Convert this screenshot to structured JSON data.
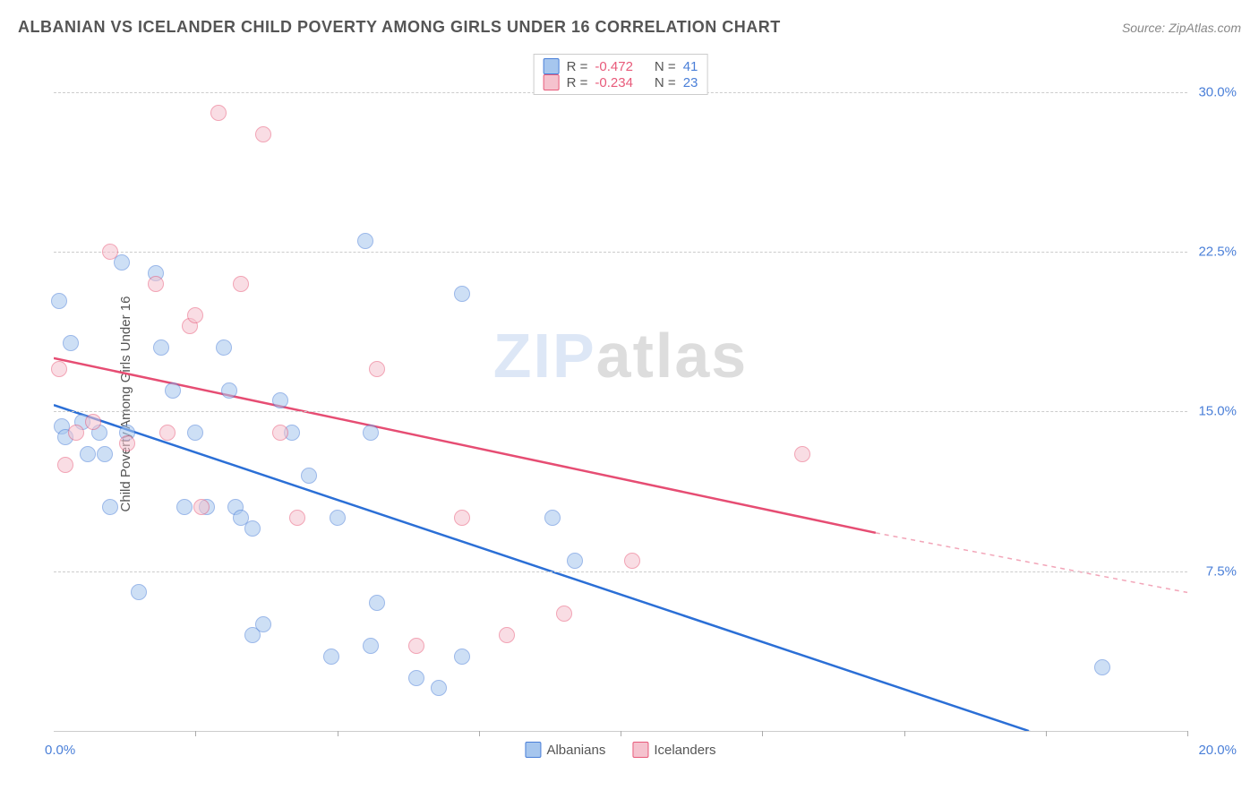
{
  "header": {
    "title": "ALBANIAN VS ICELANDER CHILD POVERTY AMONG GIRLS UNDER 16 CORRELATION CHART",
    "source_label": "Source: ",
    "source_name": "ZipAtlas.com"
  },
  "watermark": {
    "part1": "ZIP",
    "part2": "atlas"
  },
  "chart": {
    "type": "scatter",
    "y_axis_label": "Child Poverty Among Girls Under 16",
    "xlim": [
      0,
      20
    ],
    "ylim": [
      0,
      32
    ],
    "x_tick_positions": [
      0,
      2.5,
      5,
      7.5,
      10,
      12.5,
      15,
      17.5,
      20
    ],
    "y_gridlines": [
      7.5,
      15,
      22.5,
      30
    ],
    "y_tick_labels": [
      "7.5%",
      "15.0%",
      "22.5%",
      "30.0%"
    ],
    "x_origin_label": "0.0%",
    "x_end_label": "20.0%",
    "grid_color": "#cccccc",
    "background_color": "#ffffff",
    "dot_radius": 9,
    "dot_opacity": 0.55,
    "dot_border_width": 1.5
  },
  "series": [
    {
      "name": "Albanians",
      "color_fill": "#a6c6ee",
      "color_stroke": "#4a7fd8",
      "line_color": "#2b6fd6",
      "R": "-0.472",
      "N": "41",
      "trend": {
        "x1": 0,
        "y1": 15.3,
        "x2": 17.2,
        "y2": 0,
        "dashed_to_x": 20,
        "dashed_to_y": -2.5
      },
      "points": [
        [
          0.1,
          20.2
        ],
        [
          0.15,
          14.3
        ],
        [
          0.2,
          13.8
        ],
        [
          0.3,
          18.2
        ],
        [
          0.5,
          14.5
        ],
        [
          0.6,
          13.0
        ],
        [
          0.8,
          14.0
        ],
        [
          0.9,
          13.0
        ],
        [
          1.0,
          10.5
        ],
        [
          1.2,
          22.0
        ],
        [
          1.3,
          14.0
        ],
        [
          1.5,
          6.5
        ],
        [
          1.8,
          21.5
        ],
        [
          1.9,
          18.0
        ],
        [
          2.1,
          16.0
        ],
        [
          2.3,
          10.5
        ],
        [
          2.5,
          14.0
        ],
        [
          2.7,
          10.5
        ],
        [
          3.0,
          18.0
        ],
        [
          3.1,
          16.0
        ],
        [
          3.2,
          10.5
        ],
        [
          3.3,
          10.0
        ],
        [
          3.5,
          4.5
        ],
        [
          3.5,
          9.5
        ],
        [
          3.7,
          5.0
        ],
        [
          4.0,
          15.5
        ],
        [
          4.2,
          14.0
        ],
        [
          4.5,
          12.0
        ],
        [
          4.9,
          3.5
        ],
        [
          5.0,
          10.0
        ],
        [
          5.5,
          23.0
        ],
        [
          5.6,
          14.0
        ],
        [
          5.6,
          4.0
        ],
        [
          5.7,
          6.0
        ],
        [
          6.4,
          2.5
        ],
        [
          6.8,
          2.0
        ],
        [
          7.2,
          20.5
        ],
        [
          7.2,
          3.5
        ],
        [
          8.8,
          10.0
        ],
        [
          9.2,
          8.0
        ],
        [
          18.5,
          3.0
        ]
      ]
    },
    {
      "name": "Icelanders",
      "color_fill": "#f5c2ce",
      "color_stroke": "#e85a7a",
      "line_color": "#e64d73",
      "R": "-0.234",
      "N": "23",
      "trend": {
        "x1": 0,
        "y1": 17.5,
        "x2": 14.5,
        "y2": 9.3,
        "dashed_to_x": 20,
        "dashed_to_y": 6.5
      },
      "points": [
        [
          0.1,
          17.0
        ],
        [
          0.2,
          12.5
        ],
        [
          0.4,
          14.0
        ],
        [
          0.7,
          14.5
        ],
        [
          1.0,
          22.5
        ],
        [
          1.3,
          13.5
        ],
        [
          1.8,
          21.0
        ],
        [
          2.0,
          14.0
        ],
        [
          2.4,
          19.0
        ],
        [
          2.5,
          19.5
        ],
        [
          2.6,
          10.5
        ],
        [
          2.9,
          29.0
        ],
        [
          3.3,
          21.0
        ],
        [
          3.7,
          28.0
        ],
        [
          4.0,
          14.0
        ],
        [
          4.3,
          10.0
        ],
        [
          5.7,
          17.0
        ],
        [
          6.4,
          4.0
        ],
        [
          7.2,
          10.0
        ],
        [
          8.0,
          4.5
        ],
        [
          9.0,
          5.5
        ],
        [
          10.2,
          8.0
        ],
        [
          13.2,
          13.0
        ]
      ]
    }
  ],
  "legend_top": {
    "r_label": "R =",
    "n_label": "N ="
  },
  "legend_bottom": {
    "items": [
      "Albanians",
      "Icelanders"
    ]
  }
}
